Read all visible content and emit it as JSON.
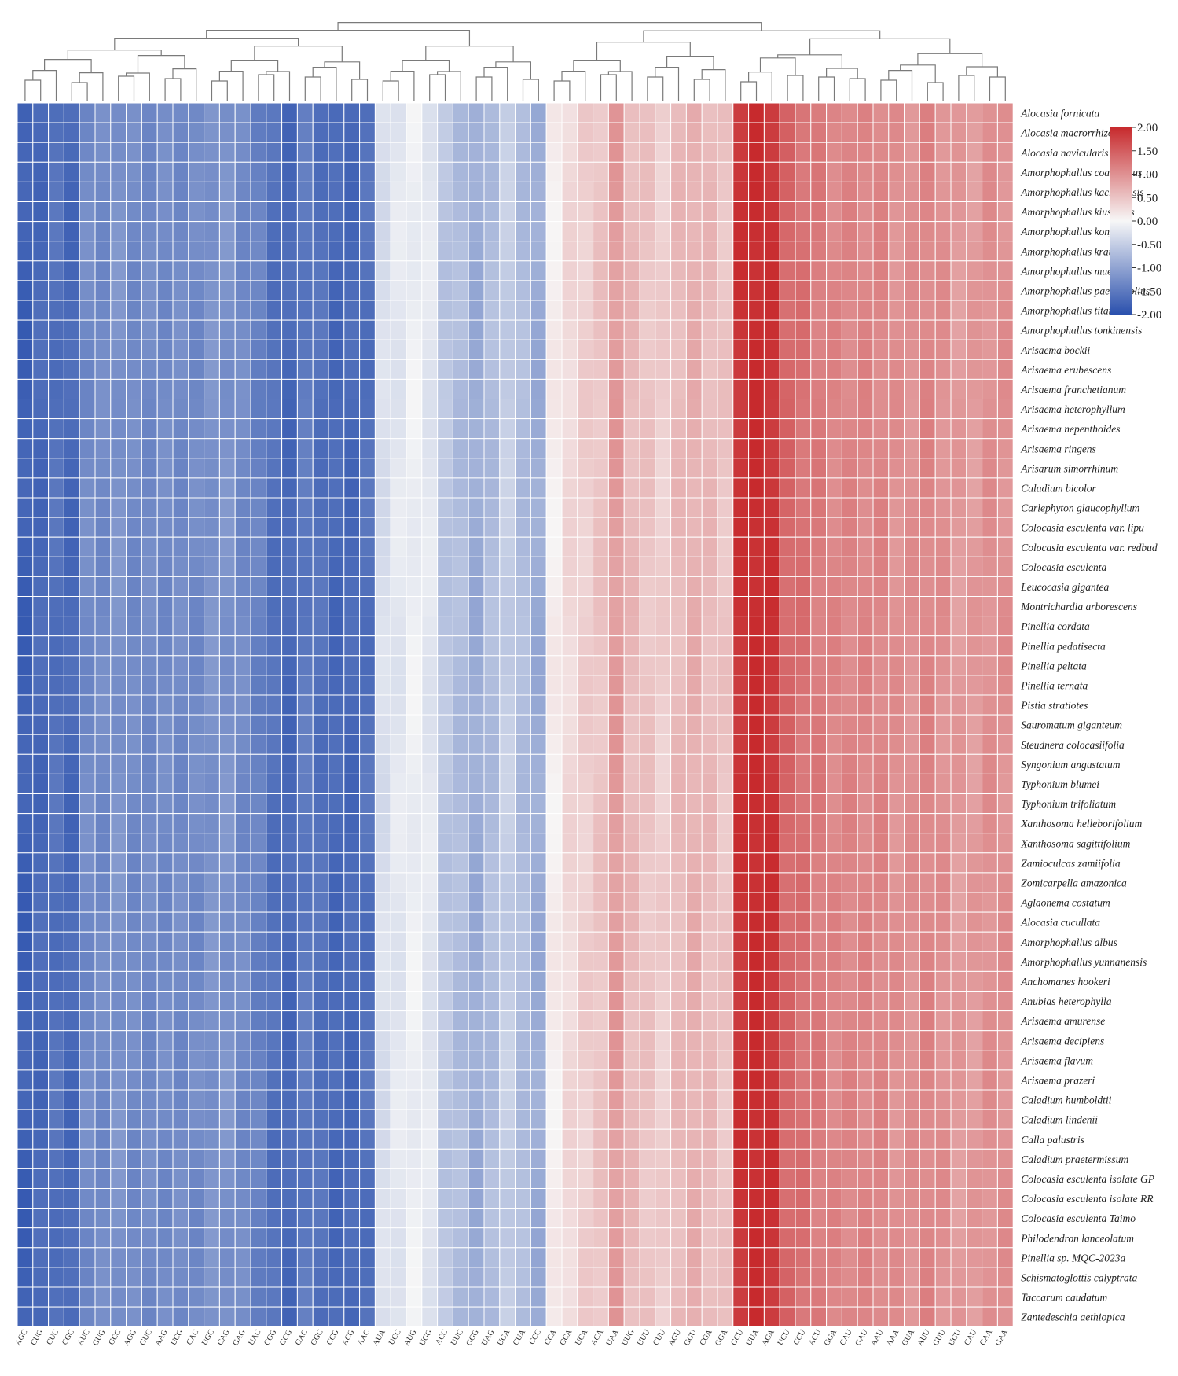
{
  "chart_data": {
    "type": "heatmap",
    "title": "",
    "rows": [
      "Alocasia fornicata",
      "Alocasia macrorrhizos",
      "Alocasia navicularis",
      "Amorphophallus coaetaneus",
      "Amorphophallus kachinensis",
      "Amorphophallus kiusianus",
      "Amorphophallus konjac",
      "Amorphophallus krausei",
      "Amorphophallus muelleri",
      "Amorphophallus paeoniifolius",
      "Amorphophallus titanum",
      "Amorphophallus tonkinensis",
      "Arisaema bockii",
      "Arisaema erubescens",
      "Arisaema franchetianum",
      "Arisaema heterophyllum",
      "Arisaema nepenthoides",
      "Arisaema ringens",
      "Arisarum simorrhinum",
      "Caladium bicolor",
      "Carlephyton glaucophyllum",
      "Colocasia esculenta var. lipu",
      "Colocasia esculenta var. redbud",
      "Colocasia esculenta",
      "Leucocasia gigantea",
      "Montrichardia arborescens",
      "Pinellia cordata",
      "Pinellia pedatisecta",
      "Pinellia peltata",
      "Pinellia ternata",
      "Pistia stratiotes",
      "Sauromatum giganteum",
      "Steudnera colocasiifolia",
      "Syngonium angustatum",
      "Typhonium blumei",
      "Typhonium trifoliatum",
      "Xanthosoma helleborifolium",
      "Xanthosoma sagittifolium",
      "Zamioculcas zamiifolia",
      "Zomicarpella amazonica",
      "Aglaonema costatum",
      "Alocasia cucullata",
      "Amorphophallus albus",
      "Amorphophallus yunnanensis",
      "Anchomanes hookeri",
      "Anubias heterophylla",
      "Arisaema amurense",
      "Arisaema decipiens",
      "Arisaema flavum",
      "Arisaema prazeri",
      "Caladium humboldtii",
      "Caladium lindenii",
      "Calla palustris",
      "Caladium praetermissum",
      "Colocasia esculenta isolate GP",
      "Colocasia esculenta isolate RR",
      "Colocasia esculenta Taimo",
      "Philodendron lanceolatum",
      "Pinellia sp. MQC-2023a",
      "Schismatoglottis calyptrata",
      "Taccarum caudatum",
      "Zantedeschia aethiopica"
    ],
    "columns": [
      "AGC",
      "CUG",
      "CUC",
      "CGC",
      "AUC",
      "GUG",
      "GCC",
      "AGG",
      "GUC",
      "AAG",
      "UCG",
      "CAC",
      "UGC",
      "CAG",
      "GAG",
      "UAC",
      "CGG",
      "GCG",
      "GAC",
      "GGC",
      "CCG",
      "ACG",
      "AAC",
      "AUA",
      "UCC",
      "AUG",
      "UGG",
      "ACC",
      "UUC",
      "GGG",
      "UAG",
      "UGA",
      "CUA",
      "CCC",
      "CCA",
      "GCA",
      "UCA",
      "ACA",
      "UAA",
      "UUG",
      "UUU",
      "CUU",
      "AGU",
      "GGU",
      "CGA",
      "GGA",
      "GCU",
      "UUA",
      "AGA",
      "UCU",
      "CCU",
      "ACU",
      "GGA",
      "CAU",
      "GAU",
      "AAU",
      "AAA",
      "GUA",
      "AUU",
      "GUU",
      "UGU",
      "CAU",
      "CAA",
      "GAA"
    ],
    "column_rms": [
      -1.8,
      -1.7,
      -1.6,
      -1.7,
      -1.3,
      -1.3,
      -1.2,
      -1.3,
      -1.3,
      -1.3,
      -1.3,
      -1.3,
      -1.2,
      -1.2,
      -1.3,
      -1.4,
      -1.6,
      -1.7,
      -1.5,
      -1.6,
      -1.7,
      -1.7,
      -1.6,
      -0.3,
      -0.2,
      -0.1,
      -0.2,
      -0.6,
      -0.7,
      -0.9,
      -0.7,
      -0.5,
      -0.7,
      -0.9,
      0.1,
      0.3,
      0.4,
      0.5,
      0.9,
      0.6,
      0.5,
      0.4,
      0.6,
      0.7,
      0.6,
      0.5,
      1.9,
      2.0,
      1.9,
      1.4,
      1.3,
      1.2,
      1.1,
      1.1,
      1.1,
      1.1,
      1.0,
      1.0,
      1.1,
      1.0,
      0.9,
      0.9,
      1.0,
      1.0
    ],
    "color_scale": {
      "min": -2.0,
      "max": 2.0,
      "low_color": "#2a50ad",
      "mid_color": "#f7f7f7",
      "high_color": "#c72a2d",
      "ticks": [
        "2.00",
        "1.50",
        "1.00",
        "0.50",
        "0.00",
        "-0.50",
        "-1.00",
        "-1.50",
        "-2.00"
      ]
    },
    "dendrogram": "column-clustering-tree-top",
    "legend_position": "top-right"
  }
}
